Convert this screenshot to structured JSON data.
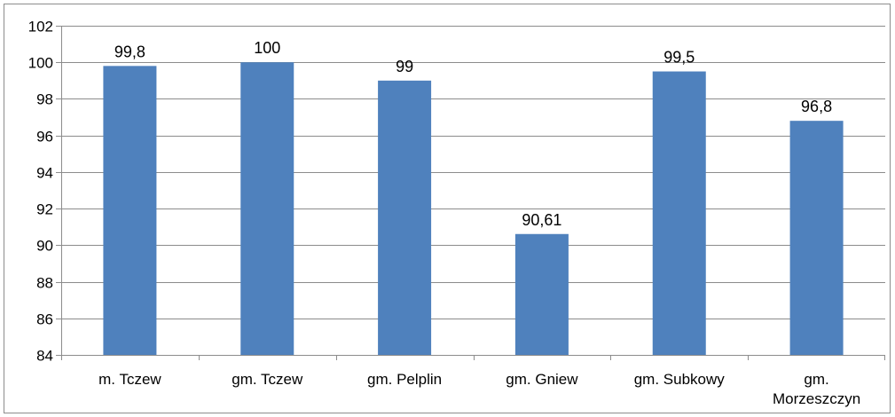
{
  "chart_data": {
    "type": "bar",
    "categories": [
      "m. Tczew",
      "gm. Tczew",
      "gm. Pelplin",
      "gm. Gniew",
      "gm. Subkowy",
      "gm. Morzeszczyn"
    ],
    "category_lines": [
      [
        "m. Tczew"
      ],
      [
        "gm. Tczew"
      ],
      [
        "gm. Pelplin"
      ],
      [
        "gm. Gniew"
      ],
      [
        "gm. Subkowy"
      ],
      [
        "gm.",
        "Morzeszczyn"
      ]
    ],
    "values": [
      99.8,
      100,
      99,
      90.61,
      99.5,
      96.8
    ],
    "data_labels": [
      "99,8",
      "100",
      "99",
      "90,61",
      "99,5",
      "96,8"
    ],
    "y_ticks": [
      "84",
      "86",
      "88",
      "90",
      "92",
      "94",
      "96",
      "98",
      "100",
      "102"
    ],
    "title": "",
    "xlabel": "",
    "ylabel": "",
    "ylim": [
      84,
      102
    ],
    "grid": true,
    "legend": "none",
    "bar_color": "#4f81bd",
    "grid_color": "#8c8c8c"
  }
}
